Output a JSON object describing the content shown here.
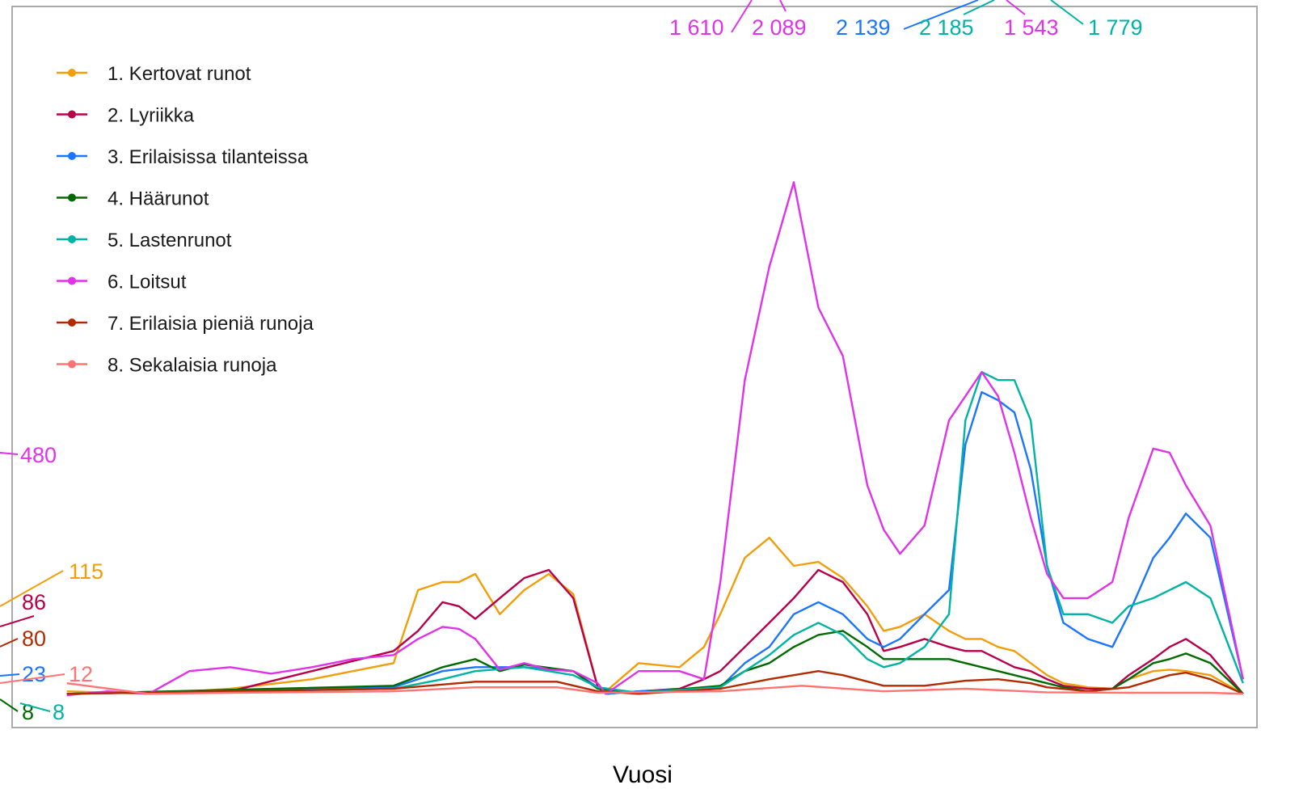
{
  "chart_data": {
    "type": "line",
    "x_label": "Vuosi",
    "xlim": [
      1793.3,
      1945.7
    ],
    "xticks": [
      1800,
      1810,
      1820,
      1830,
      1840,
      1850,
      1860,
      1870,
      1880,
      1890,
      1900,
      1910,
      1920,
      1930,
      1940
    ],
    "xminor_ticks": [
      1795,
      1805,
      1815,
      1825,
      1835,
      1845,
      1855,
      1865,
      1875,
      1885,
      1895,
      1905,
      1915,
      1925,
      1935,
      1945
    ],
    "ylim": [
      -64,
      1368
    ],
    "yticks": [
      0,
      500,
      1000
    ],
    "yminor_ticks": [
      250,
      750
    ],
    "grid": true,
    "legend": "top-left",
    "series": [
      {
        "name": "1. Kertovat runot",
        "color": "#f29d0a",
        "x": [
          1800,
          1810,
          1820,
          1830,
          1840,
          1843,
          1846,
          1848,
          1850,
          1853,
          1856,
          1859,
          1862,
          1865,
          1866,
          1870,
          1875,
          1878,
          1880,
          1883,
          1886,
          1889,
          1892,
          1895,
          1898,
          1900,
          1902,
          1905,
          1908,
          1910,
          1912,
          1914,
          1916,
          1918,
          1920,
          1922,
          1925,
          1928,
          1930,
          1933,
          1935,
          1937,
          1940,
          1944
        ],
        "values": [
          8,
          3,
          13,
          32,
          64,
          209,
          225,
          225,
          241,
          161,
          209,
          241,
          201,
          16,
          8,
          64,
          56,
          96,
          161,
          273,
          313,
          257,
          265,
          233,
          177,
          128,
          136,
          161,
          128,
          112,
          112,
          96,
          88,
          64,
          40,
          24,
          16,
          13,
          32,
          48,
          51,
          48,
          40,
          3
        ]
      },
      {
        "name": "2. Lyriikka",
        "color": "#b8004a",
        "x": [
          1800,
          1820,
          1830,
          1840,
          1843,
          1846,
          1848,
          1850,
          1853,
          1856,
          1859,
          1862,
          1865,
          1866,
          1870,
          1875,
          1878,
          1880,
          1883,
          1886,
          1889,
          1892,
          1895,
          1898,
          1900,
          1902,
          1905,
          1908,
          1910,
          1912,
          1914,
          1916,
          1918,
          1920,
          1922,
          1925,
          1928,
          1930,
          1933,
          1935,
          1937,
          1940,
          1944
        ],
        "values": [
          3,
          8,
          48,
          88,
          128,
          185,
          177,
          152,
          193,
          233,
          249,
          193,
          16,
          3,
          8,
          13,
          32,
          48,
          96,
          144,
          193,
          249,
          225,
          161,
          88,
          96,
          112,
          96,
          88,
          88,
          72,
          56,
          48,
          32,
          19,
          13,
          13,
          40,
          72,
          96,
          112,
          80,
          3
        ]
      },
      {
        "name": "3. Erilaisissa tilanteissa",
        "color": "#1a75ff",
        "x": [
          1800,
          1840,
          1846,
          1850,
          1856,
          1862,
          1865,
          1866,
          1870,
          1880,
          1883,
          1886,
          1889,
          1892,
          1895,
          1898,
          1900,
          1902,
          1905,
          1908,
          1910,
          1912,
          1914,
          1916,
          1918,
          1920,
          1922,
          1925,
          1928,
          1930,
          1933,
          1935,
          1937,
          1940,
          1944
        ],
        "values": [
          3,
          16,
          48,
          56,
          56,
          48,
          16,
          3,
          8,
          16,
          64,
          96,
          161,
          185,
          161,
          112,
          96,
          112,
          161,
          209,
          498,
          602,
          586,
          562,
          449,
          257,
          144,
          112,
          96,
          161,
          273,
          313,
          361,
          313,
          32
        ]
      },
      {
        "name": "4. Häärunot",
        "color": "#006a00",
        "x": [
          1800,
          1840,
          1846,
          1850,
          1853,
          1856,
          1862,
          1865,
          1870,
          1880,
          1883,
          1886,
          1889,
          1892,
          1895,
          1898,
          1900,
          1902,
          1905,
          1908,
          1910,
          1912,
          1914,
          1916,
          1918,
          1920,
          1922,
          1925,
          1928,
          1930,
          1933,
          1935,
          1937,
          1940,
          1944
        ],
        "values": [
          3,
          19,
          56,
          72,
          48,
          61,
          48,
          13,
          5,
          19,
          48,
          64,
          96,
          120,
          128,
          96,
          72,
          72,
          72,
          72,
          64,
          56,
          48,
          40,
          32,
          24,
          16,
          8,
          13,
          32,
          64,
          72,
          83,
          64,
          3
        ]
      },
      {
        "name": "5. Lastenrunot",
        "color": "#00b3a3",
        "x": [
          1800,
          1840,
          1846,
          1850,
          1856,
          1862,
          1865,
          1870,
          1880,
          1883,
          1886,
          1889,
          1892,
          1895,
          1898,
          1900,
          1902,
          1905,
          1908,
          1910,
          1912,
          1914,
          1916,
          1918,
          1920,
          1922,
          1925,
          1928,
          1930,
          1933,
          1935,
          1937,
          1940,
          1944
        ],
        "values": [
          3,
          13,
          32,
          48,
          56,
          40,
          16,
          5,
          16,
          48,
          80,
          120,
          144,
          120,
          72,
          56,
          64,
          96,
          161,
          546,
          642,
          626,
          626,
          546,
          257,
          161,
          161,
          144,
          177,
          193,
          209,
          225,
          193,
          24
        ]
      },
      {
        "name": "6. Loitsut",
        "color": "#e032e8",
        "x": [
          1800,
          1805,
          1810,
          1815,
          1820,
          1825,
          1830,
          1835,
          1840,
          1843,
          1846,
          1848,
          1850,
          1853,
          1856,
          1859,
          1862,
          1865,
          1866,
          1870,
          1875,
          1878,
          1880,
          1883,
          1886,
          1889,
          1892,
          1895,
          1898,
          1900,
          1902,
          1905,
          1908,
          1910,
          1912,
          1914,
          1916,
          1918,
          1920,
          1922,
          1925,
          1928,
          1930,
          1933,
          1935,
          1937,
          1940,
          1944
        ],
        "values": [
          0,
          8,
          3,
          48,
          56,
          43,
          56,
          72,
          80,
          112,
          136,
          132,
          112,
          51,
          64,
          51,
          48,
          24,
          3,
          48,
          48,
          32,
          225,
          626,
          851,
          1019,
          770,
          674,
          417,
          329,
          281,
          337,
          546,
          594,
          642,
          594,
          482,
          353,
          241,
          193,
          193,
          225,
          353,
          490,
          482,
          417,
          337,
          32
        ]
      },
      {
        "name": "7. Erilaisia pieniä runoja",
        "color": "#b22a00",
        "x": [
          1800,
          1840,
          1850,
          1860,
          1865,
          1870,
          1880,
          1886,
          1889,
          1892,
          1895,
          1900,
          1905,
          1910,
          1914,
          1918,
          1920,
          1925,
          1930,
          1935,
          1937,
          1940,
          1944
        ],
        "values": [
          3,
          13,
          27,
          27,
          8,
          3,
          13,
          32,
          40,
          48,
          40,
          19,
          19,
          29,
          32,
          24,
          16,
          8,
          16,
          40,
          45,
          32,
          3
        ]
      },
      {
        "name": "8. Sekalaisia runoja",
        "color": "#ff7373",
        "x": [
          1800,
          1810,
          1820,
          1840,
          1850,
          1860,
          1865,
          1880,
          1890,
          1900,
          1910,
          1920,
          1930,
          1940,
          1944
        ],
        "values": [
          24,
          3,
          5,
          8,
          16,
          16,
          5,
          8,
          19,
          8,
          13,
          6,
          5,
          5,
          3
        ]
      }
    ],
    "annotations": [
      {
        "text": "480",
        "color": "#e032e8"
      },
      {
        "text": "115",
        "color": "#f29d0a"
      },
      {
        "text": "86",
        "color": "#b8004a"
      },
      {
        "text": "80",
        "color": "#b22a00"
      },
      {
        "text": "23",
        "color": "#1a75ff"
      },
      {
        "text": "12",
        "color": "#ff7373"
      },
      {
        "text": "8",
        "color": "#006a00"
      },
      {
        "text": "8",
        "color": "#00b3a3"
      },
      {
        "text": "1 610",
        "color": "#e032e8"
      },
      {
        "text": "2 089",
        "color": "#e032e8"
      },
      {
        "text": "2 139",
        "color": "#1a75ff"
      },
      {
        "text": "2 185",
        "color": "#00b3a3"
      },
      {
        "text": "1 543",
        "color": "#e032e8"
      },
      {
        "text": "1 779",
        "color": "#00b3a3"
      }
    ]
  }
}
